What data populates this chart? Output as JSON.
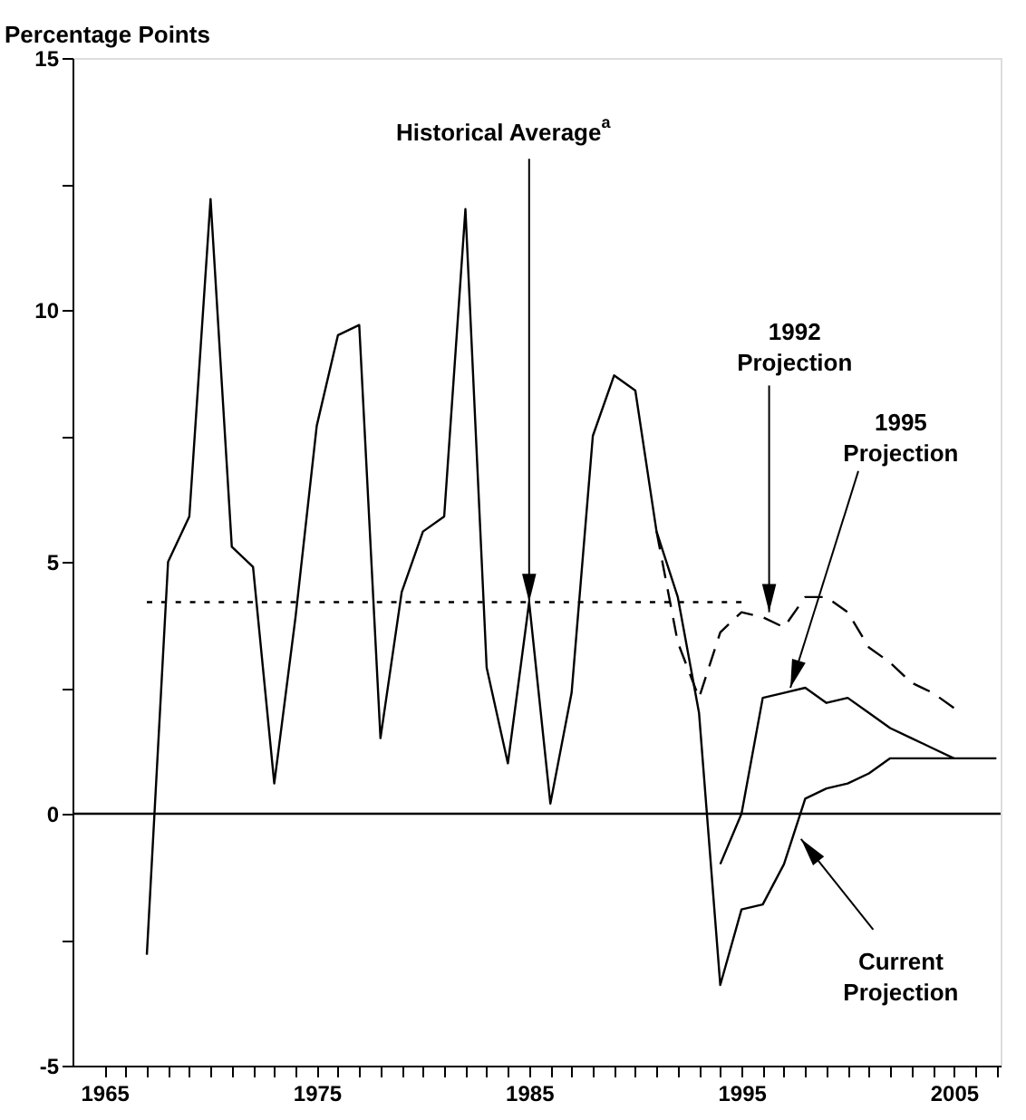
{
  "chart_data": {
    "type": "line",
    "ylabel": "Percentage Points",
    "xlim": [
      1963.5,
      2007.2
    ],
    "xticks": [
      1965,
      {
        "value": 1966,
        "label": null
      },
      {
        "value": 1967,
        "label": null
      },
      {
        "value": 1968,
        "label": null
      },
      {
        "value": 1969,
        "label": null
      },
      {
        "value": 1970,
        "label": null
      },
      {
        "value": 1971,
        "label": null
      },
      {
        "value": 1972,
        "label": null
      },
      {
        "value": 1973,
        "label": null
      },
      {
        "value": 1974,
        "label": null
      },
      1975,
      {
        "value": 1976,
        "label": null
      },
      {
        "value": 1977,
        "label": null
      },
      {
        "value": 1978,
        "label": null
      },
      {
        "value": 1979,
        "label": null
      },
      {
        "value": 1980,
        "label": null
      },
      {
        "value": 1981,
        "label": null
      },
      {
        "value": 1982,
        "label": null
      },
      {
        "value": 1983,
        "label": null
      },
      {
        "value": 1984,
        "label": null
      },
      1985,
      {
        "value": 1986,
        "label": null
      },
      {
        "value": 1987,
        "label": null
      },
      {
        "value": 1988,
        "label": null
      },
      {
        "value": 1989,
        "label": null
      },
      {
        "value": 1990,
        "label": null
      },
      {
        "value": 1991,
        "label": null
      },
      {
        "value": 1992,
        "label": null
      },
      {
        "value": 1993,
        "label": null
      },
      {
        "value": 1994,
        "label": null
      },
      1995,
      {
        "value": 1996,
        "label": null
      },
      {
        "value": 1997,
        "label": null
      },
      {
        "value": 1998,
        "label": null
      },
      {
        "value": 1999,
        "label": null
      },
      {
        "value": 2000,
        "label": null
      },
      {
        "value": 2001,
        "label": null
      },
      {
        "value": 2002,
        "label": null
      },
      {
        "value": 2003,
        "label": null
      },
      {
        "value": 2004,
        "label": null
      },
      2005,
      {
        "value": 2006,
        "label": null
      },
      {
        "value": 2007,
        "label": null
      }
    ],
    "ylim": [
      -5,
      15
    ],
    "yticks": [
      -5,
      {
        "value": -2.5,
        "label": null
      },
      0,
      {
        "value": 2.5,
        "label": null
      },
      5,
      {
        "value": 7.5,
        "label": null
      },
      10,
      {
        "value": 12.5,
        "label": null
      },
      15
    ],
    "grid": false,
    "marker": "none",
    "series": [
      {
        "color": "#000000",
        "line_style": "solid",
        "x": [
          1967,
          1968,
          1969,
          1970,
          1971,
          1972,
          1973,
          1974,
          1975,
          1976,
          1977,
          1978,
          1979,
          1980,
          1981,
          1982,
          1983,
          1984,
          1985,
          1986,
          1987,
          1988,
          1989,
          1990,
          1991,
          1992,
          1993,
          1994,
          1995,
          1996,
          1997,
          1998,
          1999,
          2000,
          2001,
          2002,
          2003,
          2004,
          2005,
          2006,
          2007
        ],
        "values": [
          -2.8,
          5.0,
          5.9,
          12.2,
          5.3,
          4.9,
          0.6,
          3.9,
          7.7,
          9.5,
          9.7,
          1.5,
          4.4,
          5.6,
          5.9,
          12.0,
          2.9,
          1.0,
          4.2,
          0.2,
          2.4,
          7.5,
          8.7,
          8.4,
          5.6,
          4.3,
          2.0,
          -3.4,
          -1.9,
          -1.8,
          -1.0,
          0.3,
          0.5,
          0.6,
          0.8,
          1.1,
          1.1,
          1.1,
          1.1,
          1.1,
          1.1
        ]
      },
      {
        "color": "#000000",
        "line_style": "solid",
        "x": [
          1994,
          1995,
          1996,
          1997,
          1998,
          1999,
          2000,
          2001,
          2002,
          2003,
          2004,
          2005
        ],
        "values": [
          -1.0,
          0.0,
          2.3,
          2.4,
          2.5,
          2.2,
          2.3,
          2.0,
          1.7,
          1.5,
          1.3,
          1.1
        ]
      },
      {
        "color": "#000000",
        "line_style": "dashed",
        "x": [
          1991,
          1992,
          1993,
          1994,
          1995,
          1996,
          1997,
          1998,
          1999,
          2000,
          2001,
          2002,
          2003,
          2004,
          2005
        ],
        "values": [
          5.6,
          3.4,
          2.3,
          3.6,
          4.0,
          3.9,
          3.7,
          4.3,
          4.3,
          4.0,
          3.3,
          3.0,
          2.6,
          2.4,
          2.1
        ]
      },
      {
        "color": "#000000",
        "line_style": "dotted",
        "x": [
          1967,
          1995
        ],
        "values": [
          4.2,
          4.2
        ]
      }
    ],
    "ref_lines": [
      {
        "axis": "y",
        "value": 0,
        "color": "#000000",
        "line_style": "solid"
      }
    ],
    "annotations": [
      {
        "text": "Historical Average$^{a}$",
        "x": 1985,
        "y": 4.2
      },
      {
        "text": "1992 Projection",
        "x": 1996.3,
        "y": 4.0
      },
      {
        "text": "1995 Projection",
        "x": 1997.3,
        "y": 2.5
      },
      {
        "text": "Current Projection",
        "x": 1997.8,
        "y": -0.5
      }
    ]
  }
}
